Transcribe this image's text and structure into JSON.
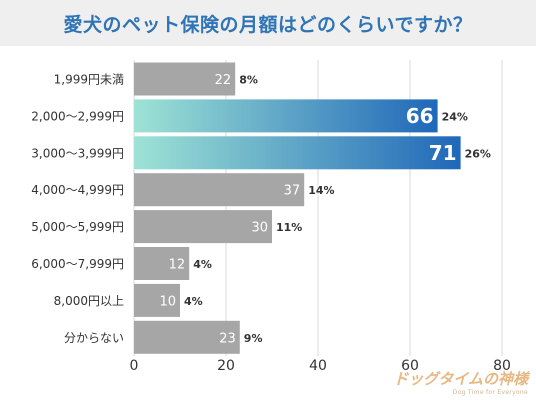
{
  "title": "愛犬のペット保険の月額はどのくらいですか？",
  "watermark": {
    "main": "ドッグタイムの神様",
    "sub": "Dog Time for Everyone"
  },
  "colors": {
    "bar_gray": "#a6a6a6",
    "highlight_start": "#9ee3d5",
    "highlight_end": "#1f67b9",
    "title_color": "#2f74b5",
    "grid": "#d9d9d9"
  },
  "chart_data": {
    "type": "bar",
    "orientation": "horizontal",
    "categories": [
      "1,999円未満",
      "2,000〜2,999円",
      "3,000〜3,999円",
      "4,000〜4,999円",
      "5,000〜5,999円",
      "6,000〜7,999円",
      "8,000円以上",
      "分からない"
    ],
    "values": [
      22,
      66,
      71,
      37,
      30,
      12,
      10,
      23
    ],
    "percent_labels": [
      "8%",
      "24%",
      "26%",
      "14%",
      "11%",
      "4%",
      "4%",
      "9%"
    ],
    "highlighted": [
      false,
      true,
      true,
      false,
      false,
      false,
      false,
      false
    ],
    "xlim": [
      0,
      80
    ],
    "xticks": [
      0,
      20,
      40,
      60,
      80
    ],
    "grid": true,
    "title": "愛犬のペット保険の月額はどのくらいですか？",
    "xlabel": "",
    "ylabel": ""
  }
}
